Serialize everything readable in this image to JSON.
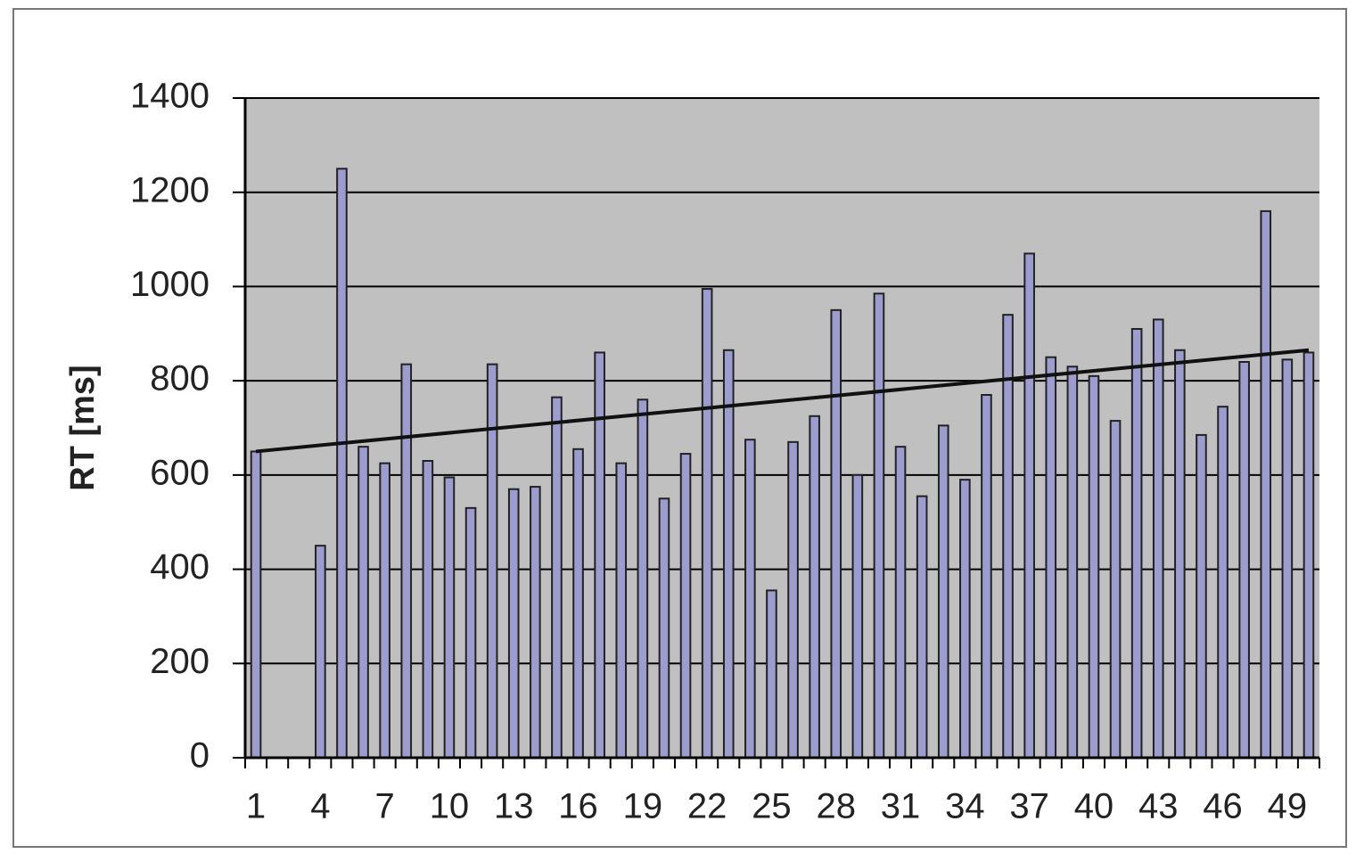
{
  "chart_data": {
    "type": "bar",
    "y_label": "RT [ms]",
    "categories": [
      "1",
      null,
      null,
      "4",
      null,
      null,
      "7",
      null,
      null,
      "10",
      null,
      null,
      "13",
      null,
      null,
      "16",
      null,
      null,
      "19",
      null,
      null,
      "22",
      null,
      null,
      "25",
      null,
      null,
      "28",
      null,
      null,
      "31",
      null,
      null,
      "34",
      null,
      null,
      "37",
      null,
      null,
      "40",
      null,
      null,
      "43",
      null,
      null,
      "46",
      null,
      null,
      "49",
      null
    ],
    "values": [
      650,
      null,
      null,
      450,
      1250,
      660,
      625,
      835,
      630,
      595,
      530,
      835,
      570,
      575,
      765,
      655,
      860,
      625,
      760,
      550,
      645,
      995,
      865,
      675,
      355,
      670,
      725,
      950,
      600,
      985,
      660,
      555,
      705,
      590,
      770,
      940,
      1070,
      850,
      830,
      810,
      715,
      910,
      930,
      865,
      685,
      745,
      840,
      1160,
      845,
      860
    ],
    "color": "#9c9ccf",
    "trendline": {
      "x": [
        1,
        50
      ],
      "values": [
        650,
        865
      ],
      "color": "#111111"
    },
    "ylim": [
      0,
      1400
    ],
    "yticks": [
      0,
      200,
      400,
      600,
      800,
      1000,
      1200,
      1400
    ],
    "grid": true
  }
}
